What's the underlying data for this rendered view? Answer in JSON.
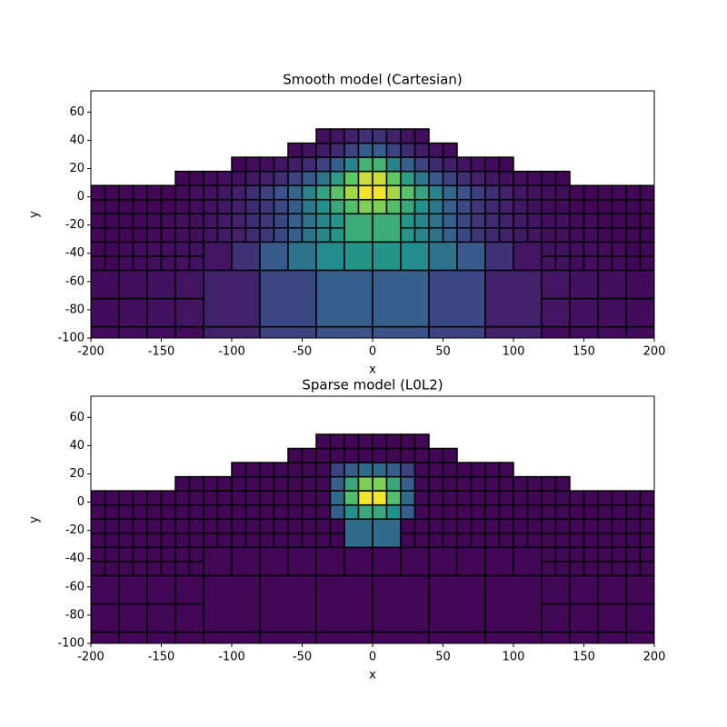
{
  "chart_data": [
    {
      "type": "mesh",
      "title": "Smooth model (Cartesian)",
      "xlabel": "x",
      "ylabel": "y",
      "colormap": "viridis",
      "edge_color": "#000000",
      "xlim": [
        -200,
        200
      ],
      "ylim": [
        -100,
        75
      ],
      "xticks": [
        -200,
        -150,
        -100,
        -50,
        0,
        50,
        100,
        150,
        200
      ],
      "yticks": [
        -100,
        -80,
        -60,
        -40,
        -20,
        0,
        20,
        40,
        60
      ],
      "rows": [
        {
          "y0": -132,
          "size": 40,
          "x0": -120,
          "values": [
            0.1,
            0.2,
            0.25,
            0.25,
            0.2,
            0.1
          ]
        },
        {
          "y0": -112,
          "size": 20,
          "x0": -200,
          "values": [
            0.03,
            0.03,
            0.03,
            0.03
          ]
        },
        {
          "y0": -112,
          "size": 20,
          "x0": 120,
          "values": [
            0.03,
            0.03,
            0.03,
            0.03
          ]
        },
        {
          "y0": -92,
          "size": 40,
          "x0": -120,
          "values": [
            0.1,
            0.22,
            0.3,
            0.3,
            0.22,
            0.1
          ]
        },
        {
          "y0": -92,
          "size": 20,
          "x0": -200,
          "values": [
            0.03,
            0.04,
            0.05,
            0.06
          ]
        },
        {
          "y0": -72,
          "size": 20,
          "x0": -200,
          "values": [
            0.03,
            0.04,
            0.05,
            0.06
          ]
        },
        {
          "y0": -92,
          "size": 20,
          "x0": 120,
          "values": [
            0.06,
            0.05,
            0.04,
            0.03
          ]
        },
        {
          "y0": -72,
          "size": 20,
          "x0": 120,
          "values": [
            0.06,
            0.05,
            0.04,
            0.03
          ]
        },
        {
          "y0": -52,
          "size": 20,
          "x0": -120,
          "values": [
            0.06,
            0.15,
            0.28,
            0.38,
            0.48,
            0.52,
            0.52,
            0.48,
            0.38,
            0.28,
            0.15,
            0.06
          ]
        },
        {
          "y0": -52,
          "size": 10,
          "x0": -200,
          "values": [
            0.02,
            0.02,
            0.03,
            0.03,
            0.04,
            0.04,
            0.05,
            0.05
          ]
        },
        {
          "y0": -42,
          "size": 10,
          "x0": -200,
          "values": [
            0.02,
            0.02,
            0.03,
            0.03,
            0.04,
            0.04,
            0.05,
            0.05
          ]
        },
        {
          "y0": -52,
          "size": 10,
          "x0": 120,
          "values": [
            0.05,
            0.05,
            0.04,
            0.04,
            0.03,
            0.03,
            0.02,
            0.02
          ]
        },
        {
          "y0": -42,
          "size": 10,
          "x0": 120,
          "values": [
            0.05,
            0.05,
            0.04,
            0.04,
            0.03,
            0.03,
            0.02,
            0.02
          ]
        },
        {
          "y0": -32,
          "size": 20,
          "x0": -20,
          "values": [
            0.62,
            0.62
          ]
        },
        {
          "y0": -32,
          "size": 10,
          "x0": -200,
          "values": [
            0.02,
            0.02,
            0.02,
            0.02,
            0.03,
            0.03,
            0.04,
            0.04,
            0.06,
            0.08,
            0.1,
            0.13,
            0.17,
            0.22,
            0.3,
            0.38,
            0.46,
            0.52
          ]
        },
        {
          "y0": -22,
          "size": 10,
          "x0": -200,
          "values": [
            0.02,
            0.02,
            0.02,
            0.02,
            0.03,
            0.03,
            0.04,
            0.04,
            0.06,
            0.08,
            0.1,
            0.13,
            0.17,
            0.22,
            0.3,
            0.38,
            0.46,
            0.52
          ]
        },
        {
          "y0": -32,
          "size": 10,
          "x0": 20,
          "values": [
            0.52,
            0.46,
            0.38,
            0.3,
            0.22,
            0.17,
            0.13,
            0.1,
            0.08,
            0.06,
            0.04,
            0.04,
            0.03,
            0.03,
            0.02,
            0.02,
            0.02,
            0.02
          ]
        },
        {
          "y0": -22,
          "size": 10,
          "x0": 20,
          "values": [
            0.52,
            0.46,
            0.38,
            0.3,
            0.22,
            0.17,
            0.13,
            0.1,
            0.08,
            0.06,
            0.04,
            0.04,
            0.03,
            0.03,
            0.02,
            0.02,
            0.02,
            0.02
          ]
        },
        {
          "y0": -12,
          "size": 10,
          "x0": -200,
          "values": [
            0.02,
            0.02,
            0.02,
            0.02,
            0.02,
            0.02,
            0.03,
            0.03,
            0.05,
            0.07,
            0.1,
            0.13,
            0.17,
            0.22,
            0.3,
            0.4,
            0.5,
            0.6,
            0.7,
            0.8,
            0.8,
            0.7,
            0.6,
            0.5,
            0.4,
            0.3,
            0.22,
            0.17,
            0.13,
            0.1,
            0.07,
            0.05,
            0.03,
            0.03,
            0.02,
            0.02,
            0.02,
            0.02,
            0.02,
            0.02
          ]
        },
        {
          "y0": -2,
          "size": 10,
          "x0": -200,
          "values": [
            0.02,
            0.02,
            0.02,
            0.02,
            0.02,
            0.02,
            0.03,
            0.04,
            0.05,
            0.07,
            0.1,
            0.14,
            0.19,
            0.25,
            0.33,
            0.45,
            0.58,
            0.72,
            0.86,
            0.98,
            0.98,
            0.86,
            0.72,
            0.58,
            0.45,
            0.33,
            0.25,
            0.19,
            0.14,
            0.1,
            0.07,
            0.05,
            0.04,
            0.03,
            0.02,
            0.02,
            0.02,
            0.02,
            0.02,
            0.02
          ]
        },
        {
          "y0": 8,
          "size": 10,
          "x0": -140,
          "values": [
            0.02,
            0.02,
            0.03,
            0.04,
            0.05,
            0.07,
            0.1,
            0.14,
            0.2,
            0.28,
            0.4,
            0.55,
            0.75,
            0.92,
            0.92,
            0.75,
            0.55,
            0.4,
            0.28,
            0.2,
            0.14,
            0.1,
            0.07,
            0.05,
            0.04,
            0.03,
            0.02,
            0.02
          ]
        },
        {
          "y0": 18,
          "size": 10,
          "x0": -100,
          "values": [
            0.02,
            0.03,
            0.04,
            0.06,
            0.09,
            0.13,
            0.2,
            0.3,
            0.45,
            0.65,
            0.65,
            0.45,
            0.3,
            0.2,
            0.13,
            0.09,
            0.06,
            0.04,
            0.03,
            0.02
          ]
        },
        {
          "y0": 28,
          "size": 10,
          "x0": -60,
          "values": [
            0.03,
            0.05,
            0.08,
            0.13,
            0.2,
            0.3,
            0.3,
            0.2,
            0.13,
            0.08,
            0.05,
            0.03
          ]
        },
        {
          "y0": 38,
          "size": 10,
          "x0": -40,
          "values": [
            0.04,
            0.06,
            0.1,
            0.15,
            0.15,
            0.1,
            0.06,
            0.04
          ]
        }
      ]
    },
    {
      "type": "mesh",
      "title": "Sparse model (L0L2)",
      "xlabel": "x",
      "ylabel": "y",
      "colormap": "viridis",
      "edge_color": "#000000",
      "xlim": [
        -200,
        200
      ],
      "ylim": [
        -100,
        75
      ],
      "xticks": [
        -200,
        -150,
        -100,
        -50,
        0,
        50,
        100,
        150,
        200
      ],
      "yticks": [
        -100,
        -80,
        -60,
        -40,
        -20,
        0,
        20,
        40,
        60
      ],
      "rows": [
        {
          "y0": -132,
          "size": 40,
          "x0": -120,
          "values": [
            0.02,
            0.02,
            0.02,
            0.02,
            0.02,
            0.02
          ]
        },
        {
          "y0": -112,
          "size": 20,
          "x0": -200,
          "values": [
            0.02,
            0.02,
            0.02,
            0.02
          ]
        },
        {
          "y0": -112,
          "size": 20,
          "x0": 120,
          "values": [
            0.02,
            0.02,
            0.02,
            0.02
          ]
        },
        {
          "y0": -92,
          "size": 40,
          "x0": -120,
          "values": [
            0.02,
            0.02,
            0.02,
            0.02,
            0.02,
            0.02
          ]
        },
        {
          "y0": -92,
          "size": 20,
          "x0": -200,
          "values": [
            0.02,
            0.02,
            0.02,
            0.02
          ]
        },
        {
          "y0": -72,
          "size": 20,
          "x0": -200,
          "values": [
            0.02,
            0.02,
            0.02,
            0.02
          ]
        },
        {
          "y0": -92,
          "size": 20,
          "x0": 120,
          "values": [
            0.02,
            0.02,
            0.02,
            0.02
          ]
        },
        {
          "y0": -72,
          "size": 20,
          "x0": 120,
          "values": [
            0.02,
            0.02,
            0.02,
            0.02
          ]
        },
        {
          "y0": -52,
          "size": 20,
          "x0": -120,
          "values": [
            0.02,
            0.02,
            0.02,
            0.02,
            0.02,
            0.02,
            0.02,
            0.02,
            0.02,
            0.02,
            0.02,
            0.02
          ]
        },
        {
          "y0": -52,
          "size": 10,
          "x0": -200,
          "values": [
            0.02,
            0.02,
            0.02,
            0.02,
            0.02,
            0.02,
            0.02,
            0.02
          ]
        },
        {
          "y0": -42,
          "size": 10,
          "x0": -200,
          "values": [
            0.02,
            0.02,
            0.02,
            0.02,
            0.02,
            0.02,
            0.02,
            0.02
          ]
        },
        {
          "y0": -52,
          "size": 10,
          "x0": 120,
          "values": [
            0.02,
            0.02,
            0.02,
            0.02,
            0.02,
            0.02,
            0.02,
            0.02
          ]
        },
        {
          "y0": -42,
          "size": 10,
          "x0": 120,
          "values": [
            0.02,
            0.02,
            0.02,
            0.02,
            0.02,
            0.02,
            0.02,
            0.02
          ]
        },
        {
          "y0": -32,
          "size": 20,
          "x0": -20,
          "values": [
            0.35,
            0.35
          ]
        },
        {
          "y0": -32,
          "size": 10,
          "x0": -200,
          "values": [
            0.02,
            0.02,
            0.02,
            0.02,
            0.02,
            0.02,
            0.02,
            0.02,
            0.02,
            0.02,
            0.02,
            0.02,
            0.02,
            0.02,
            0.02,
            0.02,
            0.02,
            0.02
          ]
        },
        {
          "y0": -22,
          "size": 10,
          "x0": -200,
          "values": [
            0.02,
            0.02,
            0.02,
            0.02,
            0.02,
            0.02,
            0.02,
            0.02,
            0.02,
            0.02,
            0.02,
            0.02,
            0.02,
            0.02,
            0.02,
            0.02,
            0.02,
            0.02
          ]
        },
        {
          "y0": -32,
          "size": 10,
          "x0": 20,
          "values": [
            0.02,
            0.02,
            0.02,
            0.02,
            0.02,
            0.02,
            0.02,
            0.02,
            0.02,
            0.02,
            0.02,
            0.02,
            0.02,
            0.02,
            0.02,
            0.02,
            0.02,
            0.02
          ]
        },
        {
          "y0": -22,
          "size": 10,
          "x0": 20,
          "values": [
            0.02,
            0.02,
            0.02,
            0.02,
            0.02,
            0.02,
            0.02,
            0.02,
            0.02,
            0.02,
            0.02,
            0.02,
            0.02,
            0.02,
            0.02,
            0.02,
            0.02,
            0.02
          ]
        },
        {
          "y0": -12,
          "size": 10,
          "x0": -200,
          "values": [
            0.02,
            0.02,
            0.02,
            0.02,
            0.02,
            0.02,
            0.02,
            0.02,
            0.02,
            0.02,
            0.02,
            0.02,
            0.02,
            0.02,
            0.02,
            0.02,
            0.02,
            0.3,
            0.5,
            0.6,
            0.6,
            0.5,
            0.3,
            0.02,
            0.02,
            0.02,
            0.02,
            0.02,
            0.02,
            0.02,
            0.02,
            0.02,
            0.02,
            0.02,
            0.02,
            0.02,
            0.02,
            0.02,
            0.02,
            0.02
          ]
        },
        {
          "y0": -2,
          "size": 10,
          "x0": -200,
          "values": [
            0.02,
            0.02,
            0.02,
            0.02,
            0.02,
            0.02,
            0.02,
            0.02,
            0.02,
            0.02,
            0.02,
            0.02,
            0.02,
            0.02,
            0.02,
            0.02,
            0.02,
            0.35,
            0.7,
            0.98,
            0.98,
            0.7,
            0.35,
            0.02,
            0.02,
            0.02,
            0.02,
            0.02,
            0.02,
            0.02,
            0.02,
            0.02,
            0.02,
            0.02,
            0.02,
            0.02,
            0.02,
            0.02,
            0.02,
            0.02
          ]
        },
        {
          "y0": 8,
          "size": 10,
          "x0": -140,
          "values": [
            0.02,
            0.02,
            0.02,
            0.02,
            0.02,
            0.02,
            0.02,
            0.02,
            0.02,
            0.02,
            0.02,
            0.3,
            0.6,
            0.8,
            0.8,
            0.6,
            0.3,
            0.02,
            0.02,
            0.02,
            0.02,
            0.02,
            0.02,
            0.02,
            0.02,
            0.02,
            0.02,
            0.02
          ]
        },
        {
          "y0": 18,
          "size": 10,
          "x0": -100,
          "values": [
            0.02,
            0.02,
            0.02,
            0.02,
            0.02,
            0.02,
            0.02,
            0.2,
            0.3,
            0.35,
            0.35,
            0.3,
            0.2,
            0.02,
            0.02,
            0.02,
            0.02,
            0.02,
            0.02,
            0.02
          ]
        },
        {
          "y0": 28,
          "size": 10,
          "x0": -60,
          "values": [
            0.02,
            0.02,
            0.02,
            0.02,
            0.02,
            0.02,
            0.02,
            0.02,
            0.02,
            0.02,
            0.02,
            0.02
          ]
        },
        {
          "y0": 38,
          "size": 10,
          "x0": -40,
          "values": [
            0.02,
            0.02,
            0.02,
            0.02,
            0.02,
            0.02,
            0.02,
            0.02
          ]
        }
      ]
    }
  ]
}
